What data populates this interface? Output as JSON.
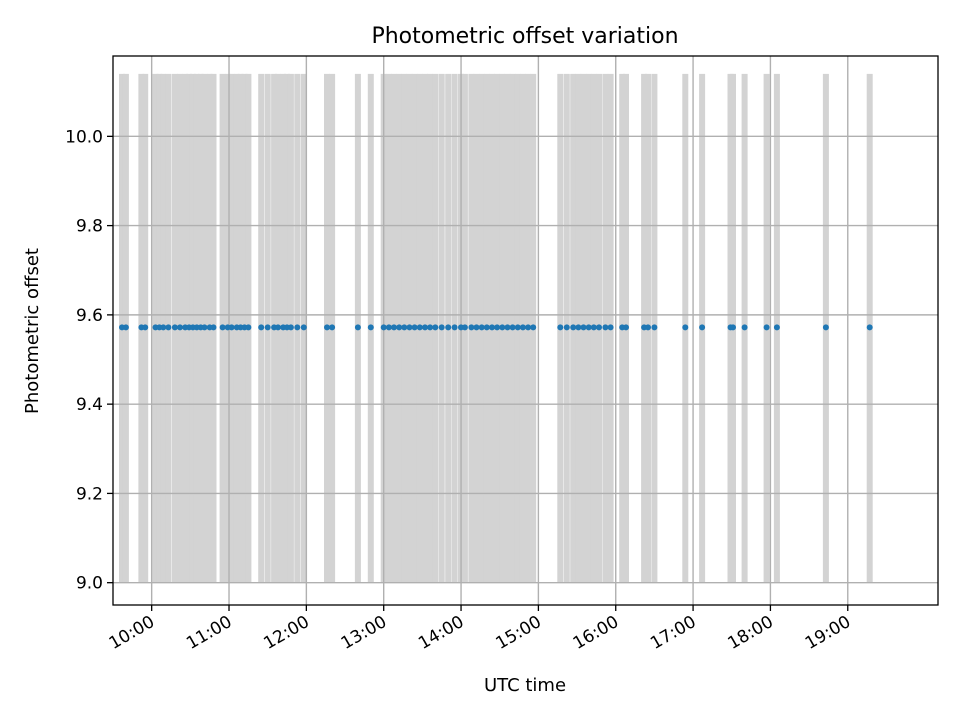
{
  "chart_data": {
    "type": "scatter",
    "title": "Photometric offset variation",
    "xlabel": "UTC time",
    "ylabel": "Photometric offset",
    "xlim": [
      "09:30",
      "20:10"
    ],
    "ylim": [
      8.95,
      10.18
    ],
    "grid": true,
    "x_ticks": [
      "10:00",
      "11:00",
      "12:00",
      "13:00",
      "14:00",
      "15:00",
      "16:00",
      "17:00",
      "18:00",
      "19:00"
    ],
    "y_ticks": [
      9.0,
      9.2,
      9.4,
      9.6,
      9.8,
      10.0
    ],
    "point_color": "#1f77b4",
    "bar_color": "#d3d3d3",
    "bar_range": [
      9.0,
      10.14
    ],
    "series": [
      {
        "x": [
          "09:37",
          "09:40",
          "09:52",
          "09:55",
          "10:03",
          "10:06",
          "10:09",
          "10:13",
          "10:18",
          "10:22",
          "10:26",
          "10:29",
          "10:32",
          "10:35",
          "10:38",
          "10:41",
          "10:45",
          "10:48",
          "10:55",
          "10:59",
          "11:02",
          "11:06",
          "11:09",
          "11:12",
          "11:15",
          "11:25",
          "11:30",
          "11:35",
          "11:38",
          "11:42",
          "11:45",
          "11:48",
          "11:53",
          "11:58",
          "12:16",
          "12:20",
          "12:40",
          "12:50",
          "13:00",
          "13:04",
          "13:08",
          "13:12",
          "13:16",
          "13:20",
          "13:24",
          "13:28",
          "13:32",
          "13:36",
          "13:40",
          "13:45",
          "13:50",
          "13:55",
          "14:00",
          "14:03",
          "14:08",
          "14:12",
          "14:16",
          "14:20",
          "14:24",
          "14:28",
          "14:32",
          "14:36",
          "14:40",
          "14:44",
          "14:48",
          "14:52",
          "14:56",
          "15:17",
          "15:22",
          "15:27",
          "15:31",
          "15:35",
          "15:39",
          "15:43",
          "15:47",
          "15:52",
          "15:56",
          "16:05",
          "16:08",
          "16:22",
          "16:25",
          "16:30",
          "16:54",
          "17:07",
          "17:29",
          "17:31",
          "17:40",
          "17:57",
          "18:05",
          "18:43",
          "19:17"
        ],
        "y": [
          9.572,
          9.572,
          9.572,
          9.572,
          9.572,
          9.572,
          9.572,
          9.572,
          9.572,
          9.572,
          9.572,
          9.572,
          9.572,
          9.572,
          9.572,
          9.572,
          9.572,
          9.572,
          9.572,
          9.572,
          9.572,
          9.572,
          9.572,
          9.572,
          9.572,
          9.572,
          9.572,
          9.572,
          9.572,
          9.572,
          9.572,
          9.572,
          9.572,
          9.572,
          9.572,
          9.572,
          9.572,
          9.572,
          9.572,
          9.572,
          9.572,
          9.572,
          9.572,
          9.572,
          9.572,
          9.572,
          9.572,
          9.572,
          9.572,
          9.572,
          9.572,
          9.572,
          9.572,
          9.572,
          9.572,
          9.572,
          9.572,
          9.572,
          9.572,
          9.572,
          9.572,
          9.572,
          9.572,
          9.572,
          9.572,
          9.572,
          9.572,
          9.572,
          9.572,
          9.572,
          9.572,
          9.572,
          9.572,
          9.572,
          9.572,
          9.572,
          9.572,
          9.572,
          9.572,
          9.572,
          9.572,
          9.572,
          9.572,
          9.572,
          9.572,
          9.572,
          9.572,
          9.572,
          9.572,
          9.572,
          9.572
        ]
      }
    ]
  }
}
